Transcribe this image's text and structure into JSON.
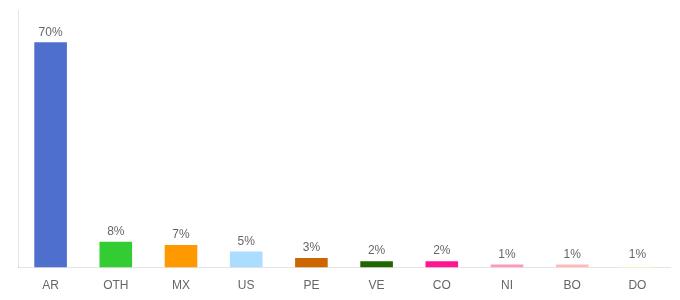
{
  "chart_data": {
    "type": "bar",
    "categories": [
      "AR",
      "OTH",
      "MX",
      "US",
      "PE",
      "VE",
      "CO",
      "NI",
      "BO",
      "DO"
    ],
    "values": [
      70,
      8,
      7,
      5,
      3,
      2,
      2,
      1,
      1,
      1
    ],
    "value_labels": [
      "70%",
      "8%",
      "7%",
      "5%",
      "3%",
      "2%",
      "2%",
      "1%",
      "1%",
      "1%"
    ],
    "colors": [
      "#4e6fce",
      "#33cc33",
      "#ff9900",
      "#aaddff",
      "#cc6600",
      "#226600",
      "#ff1493",
      "#ff99bb",
      "#ffbbbb",
      "#ffffee"
    ],
    "ylim": [
      0,
      80
    ],
    "grid": false,
    "data_labels": true,
    "tick_labels": "x"
  }
}
